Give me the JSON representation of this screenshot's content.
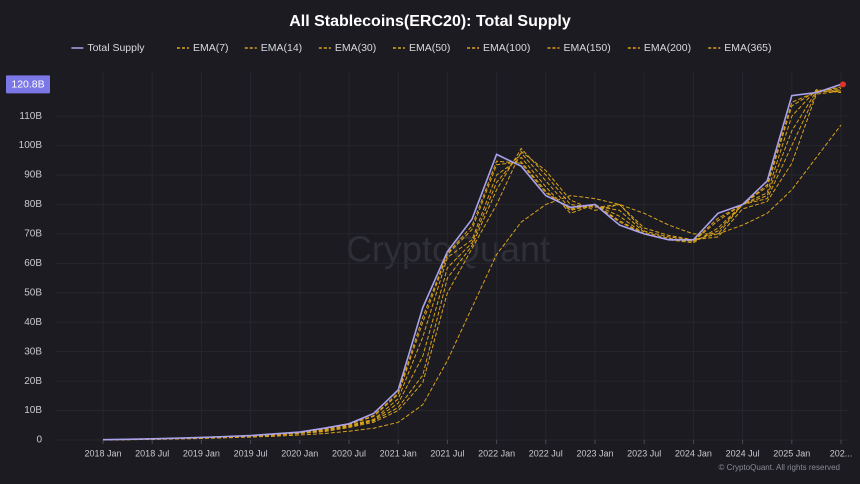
{
  "chart_data": {
    "type": "line",
    "title": "All Stablecoins(ERC20): Total Supply",
    "watermark": "CryptoQuant",
    "source": "© CryptoQuant. All rights reserved",
    "grid": true,
    "x": [
      "2018-01",
      "2018-04",
      "2018-07",
      "2018-10",
      "2019-01",
      "2019-04",
      "2019-07",
      "2019-10",
      "2020-01",
      "2020-04",
      "2020-07",
      "2020-10",
      "2021-01",
      "2021-04",
      "2021-07",
      "2021-10",
      "2022-01",
      "2022-04",
      "2022-07",
      "2022-10",
      "2023-01",
      "2023-04",
      "2023-07",
      "2023-10",
      "2024-01",
      "2024-04",
      "2024-07",
      "2024-10",
      "2025-01",
      "2025-04",
      "2025-07"
    ],
    "xticks": [
      {
        "value": "2018-01",
        "label": "2018 Jan"
      },
      {
        "value": "2018-07",
        "label": "2018 Jul"
      },
      {
        "value": "2019-01",
        "label": "2019 Jan"
      },
      {
        "value": "2019-07",
        "label": "2019 Jul"
      },
      {
        "value": "2020-01",
        "label": "2020 Jan"
      },
      {
        "value": "2020-07",
        "label": "2020 Jul"
      },
      {
        "value": "2021-01",
        "label": "2021 Jan"
      },
      {
        "value": "2021-07",
        "label": "2021 Jul"
      },
      {
        "value": "2022-01",
        "label": "2022 Jan"
      },
      {
        "value": "2022-07",
        "label": "2022 Jul"
      },
      {
        "value": "2023-01",
        "label": "2023 Jan"
      },
      {
        "value": "2023-07",
        "label": "2023 Jul"
      },
      {
        "value": "2024-01",
        "label": "2024 Jan"
      },
      {
        "value": "2024-07",
        "label": "2024 Jul"
      },
      {
        "value": "2025-01",
        "label": "2025 Jan"
      },
      {
        "value": "2025-07",
        "label": "202..."
      }
    ],
    "ylim": [
      0,
      125
    ],
    "yticks": [
      0,
      {
        "value": 10,
        "label": "10B"
      },
      {
        "value": 20,
        "label": "20B"
      },
      {
        "value": 30,
        "label": "30B"
      },
      {
        "value": 40,
        "label": "40B"
      },
      {
        "value": 50,
        "label": "50B"
      },
      {
        "value": 60,
        "label": "60B"
      },
      {
        "value": 70,
        "label": "70B"
      },
      {
        "value": 80,
        "label": "80B"
      },
      {
        "value": 90,
        "label": "90B"
      },
      {
        "value": 100,
        "label": "100B"
      },
      {
        "value": 110,
        "label": "110B"
      }
    ],
    "series": [
      {
        "name": "Total Supply",
        "color": "#a9a2ec",
        "dashed": false,
        "values": [
          0.1,
          0.25,
          0.4,
          0.6,
          0.9,
          1.2,
          1.5,
          2.1,
          2.7,
          4,
          5.5,
          9,
          17,
          45,
          64,
          75,
          97,
          93,
          83,
          79,
          80,
          73,
          70,
          68,
          68,
          77,
          80,
          88,
          117,
          118,
          120.8
        ],
        "value_labels": [
          null,
          null,
          null,
          null,
          null,
          null,
          null,
          null,
          null,
          null,
          null,
          null,
          null,
          null,
          null,
          null,
          null,
          null,
          null,
          null,
          null,
          null,
          null,
          null,
          null,
          null,
          null,
          null,
          null,
          null,
          "120.8B"
        ]
      },
      {
        "name": "EMA(7)",
        "color": "#d9a21b",
        "dashed": true,
        "values": [
          0.1,
          0.25,
          0.4,
          0.6,
          0.9,
          1.2,
          1.5,
          2.1,
          2.7,
          4,
          5.5,
          9,
          17,
          45,
          64,
          75,
          97,
          93,
          83,
          79,
          80,
          73,
          70,
          68,
          68,
          77,
          80,
          88,
          117,
          118,
          120.8
        ]
      },
      {
        "name": "EMA(14)",
        "color": "#d9a21b",
        "dashed": true,
        "values": [
          0.1,
          0.23,
          0.38,
          0.58,
          0.87,
          1.17,
          1.47,
          2.03,
          2.63,
          3.83,
          5.33,
          8.3,
          16,
          41.7,
          63.3,
          72.7,
          94.7,
          94,
          84,
          78.3,
          80,
          74,
          70,
          68,
          67.7,
          75.3,
          80,
          86.7,
          114.7,
          118.3,
          119.9
        ]
      },
      {
        "name": "EMA(30)",
        "color": "#d9a21b",
        "dashed": true,
        "values": [
          0.1,
          0.23,
          0.38,
          0.58,
          0.85,
          1.15,
          1.45,
          2,
          2.6,
          3.75,
          5.25,
          8,
          15.5,
          40,
          63,
          71.5,
          93.5,
          94.5,
          84.5,
          78,
          80,
          74.5,
          70,
          68,
          67.5,
          74.5,
          80,
          86,
          113.5,
          118.5,
          119.4
        ]
      },
      {
        "name": "EMA(50)",
        "color": "#d9a21b",
        "dashed": true,
        "values": [
          0.1,
          0.2,
          0.35,
          0.55,
          0.8,
          1.1,
          1.4,
          1.9,
          2.5,
          3.5,
          5,
          7,
          14,
          35,
          62,
          68,
          90,
          96,
          86,
          77,
          80,
          76,
          70,
          68,
          67,
          72,
          80,
          84,
          110,
          119,
          118
        ]
      },
      {
        "name": "EMA(100)",
        "color": "#d9a21b",
        "dashed": true,
        "values": [
          0.1,
          0.18,
          0.33,
          0.53,
          0.75,
          1.05,
          1.35,
          1.8,
          2.4,
          3.25,
          4.75,
          6.75,
          12.5,
          28.5,
          58.5,
          67,
          87.5,
          97.5,
          88,
          78.5,
          79.5,
          78,
          70.5,
          68.5,
          67.5,
          71,
          80,
          83,
          105,
          118.5,
          118.5
        ]
      },
      {
        "name": "EMA(150)",
        "color": "#d9a21b",
        "dashed": true,
        "values": [
          0.1,
          0.15,
          0.3,
          0.5,
          0.7,
          1,
          1.3,
          1.7,
          2.3,
          3,
          4.5,
          6.5,
          11,
          22,
          55,
          66,
          85,
          99,
          90,
          80,
          79,
          80,
          71,
          69,
          68,
          70,
          80,
          82,
          100,
          118,
          119
        ]
      },
      {
        "name": "EMA(200)",
        "color": "#d9a21b",
        "dashed": true,
        "values": [
          0.1,
          0.13,
          0.28,
          0.45,
          0.65,
          0.95,
          1.25,
          1.6,
          2.2,
          2.85,
          4.25,
          6,
          10,
          19.5,
          50,
          65,
          80,
          98,
          91.5,
          81.5,
          78,
          80,
          72,
          69.5,
          68,
          69,
          78.5,
          81,
          94,
          117.5,
          118.5
        ]
      },
      {
        "name": "EMA(365)",
        "color": "#d9a21b",
        "dashed": true,
        "values": [
          0.1,
          0.1,
          0.2,
          0.35,
          0.5,
          0.75,
          1,
          1.3,
          1.7,
          2.2,
          3,
          4,
          6,
          12,
          27,
          45,
          63,
          74,
          80,
          83,
          82,
          80,
          77,
          73,
          70,
          70,
          73,
          77,
          85,
          96,
          107
        ]
      }
    ]
  }
}
